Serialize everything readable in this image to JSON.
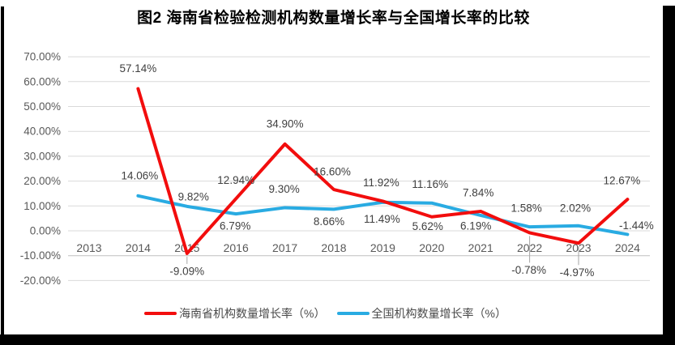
{
  "title": "图2 海南省检验检测机构数量增长率与全国增长率的比较",
  "chart_data": {
    "type": "line",
    "categories": [
      "2013",
      "2014",
      "2015",
      "2016",
      "2017",
      "2018",
      "2019",
      "2020",
      "2021",
      "2022",
      "2023",
      "2024"
    ],
    "y_tick_labels": [
      "70.00%",
      "60.00%",
      "50.00%",
      "40.00%",
      "30.00%",
      "20.00%",
      "10.00%",
      "0.00%",
      "-10.00%",
      "-20.00%"
    ],
    "ylim": [
      -20,
      70
    ],
    "grid": true,
    "legend_position": "bottom",
    "series": [
      {
        "name": "海南省机构数量增长率（%）",
        "color": "#F20D0D",
        "values": [
          null,
          57.14,
          -9.09,
          12.94,
          34.9,
          16.6,
          11.92,
          5.62,
          7.84,
          -0.78,
          -4.97,
          12.67
        ],
        "data_labels": [
          null,
          "57.14%",
          "-9.09%",
          "12.94%",
          "34.90%",
          "16.60%",
          "11.92%",
          "5.62%",
          "7.84%",
          "-0.78%",
          "-4.97%",
          "12.67%"
        ],
        "label_offsets": [
          null,
          [
            0,
            -25
          ],
          [
            0,
            22
          ],
          [
            0,
            -23
          ],
          [
            0,
            -25
          ],
          [
            -2,
            -22
          ],
          [
            -2,
            -23
          ],
          [
            -5,
            12
          ],
          [
            -3,
            -23
          ],
          [
            -1,
            46
          ],
          [
            -2,
            36
          ],
          [
            -7,
            -23
          ]
        ],
        "label_leaders": [
          false,
          false,
          true,
          false,
          false,
          false,
          false,
          false,
          false,
          true,
          true,
          false
        ]
      },
      {
        "name": "全国机构数量增长率（%）",
        "color": "#29ABE2",
        "values": [
          null,
          14.06,
          9.82,
          6.79,
          9.3,
          8.66,
          11.49,
          11.16,
          6.19,
          1.58,
          2.02,
          -1.44
        ],
        "data_labels": [
          null,
          "14.06%",
          "9.82%",
          "6.79%",
          "9.30%",
          "8.66%",
          "11.49%",
          "11.16%",
          "6.19%",
          "1.58%",
          "2.02%",
          "-1.44%"
        ],
        "label_offsets": [
          null,
          [
            2,
            -25
          ],
          [
            8,
            -12
          ],
          [
            -1,
            15
          ],
          [
            -1,
            -23
          ],
          [
            -6,
            15
          ],
          [
            -1,
            21
          ],
          [
            -2,
            -23
          ],
          [
            -6,
            13
          ],
          [
            -4,
            -23
          ],
          [
            -4,
            -22
          ],
          [
            11,
            -11
          ]
        ],
        "label_leaders": [
          false,
          false,
          false,
          false,
          false,
          false,
          false,
          false,
          false,
          false,
          false,
          false
        ]
      }
    ]
  },
  "colors": {
    "background": "#FFFFFF",
    "frame_bar": "#000000",
    "gridline": "#D9D9D9",
    "axis_line": "#BFBFBF",
    "leader_line": "#A6A6A6",
    "axis_text": "#595959",
    "data_label_text": "#404040",
    "title_text": "#000000"
  }
}
